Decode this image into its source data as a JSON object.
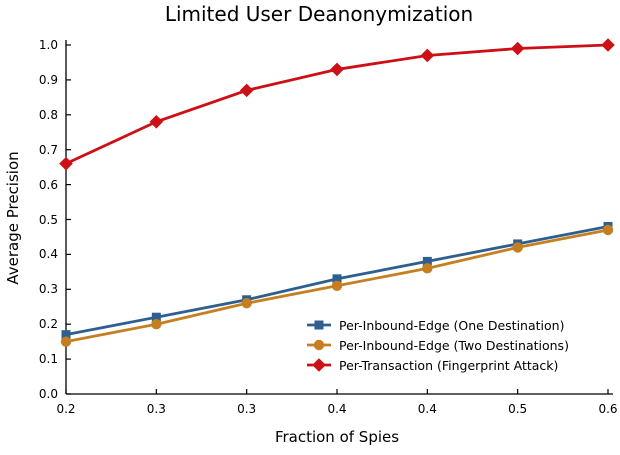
{
  "title": "Limited User Deanonymization",
  "chart_data": {
    "type": "line",
    "title": "Limited User Deanonymization",
    "xlabel": "Fraction of Spies",
    "ylabel": "Average Precision",
    "xtick_labels": [
      "0.2",
      "0.3",
      "0.3",
      "0.4",
      "0.4",
      "0.5",
      "0.6"
    ],
    "ytick_labels": [
      "0.0",
      "0.1",
      "0.2",
      "0.3",
      "0.4",
      "0.5",
      "0.6",
      "0.7",
      "0.8",
      "0.9",
      "1.0"
    ],
    "ylim": [
      0.0,
      1.0
    ],
    "grid": false,
    "legend_position": "lower-right-inside",
    "axis_color": "#000000",
    "background_color": "#ffffff",
    "series": [
      {
        "name": "Per-Inbound-Edge (One Destination)",
        "marker": "square",
        "color": "#2F5F8F",
        "values": [
          0.17,
          0.22,
          0.27,
          0.33,
          0.38,
          0.43,
          0.48
        ]
      },
      {
        "name": "Per-Inbound-Edge (Two Destinations)",
        "marker": "circle",
        "color": "#C57F21",
        "values": [
          0.15,
          0.2,
          0.26,
          0.31,
          0.36,
          0.42,
          0.47
        ]
      },
      {
        "name": "Per-Transaction (Fingerprint Attack)",
        "marker": "diamond",
        "color": "#CC1016",
        "values": [
          0.66,
          0.78,
          0.87,
          0.93,
          0.97,
          0.99,
          1.0
        ]
      }
    ]
  }
}
